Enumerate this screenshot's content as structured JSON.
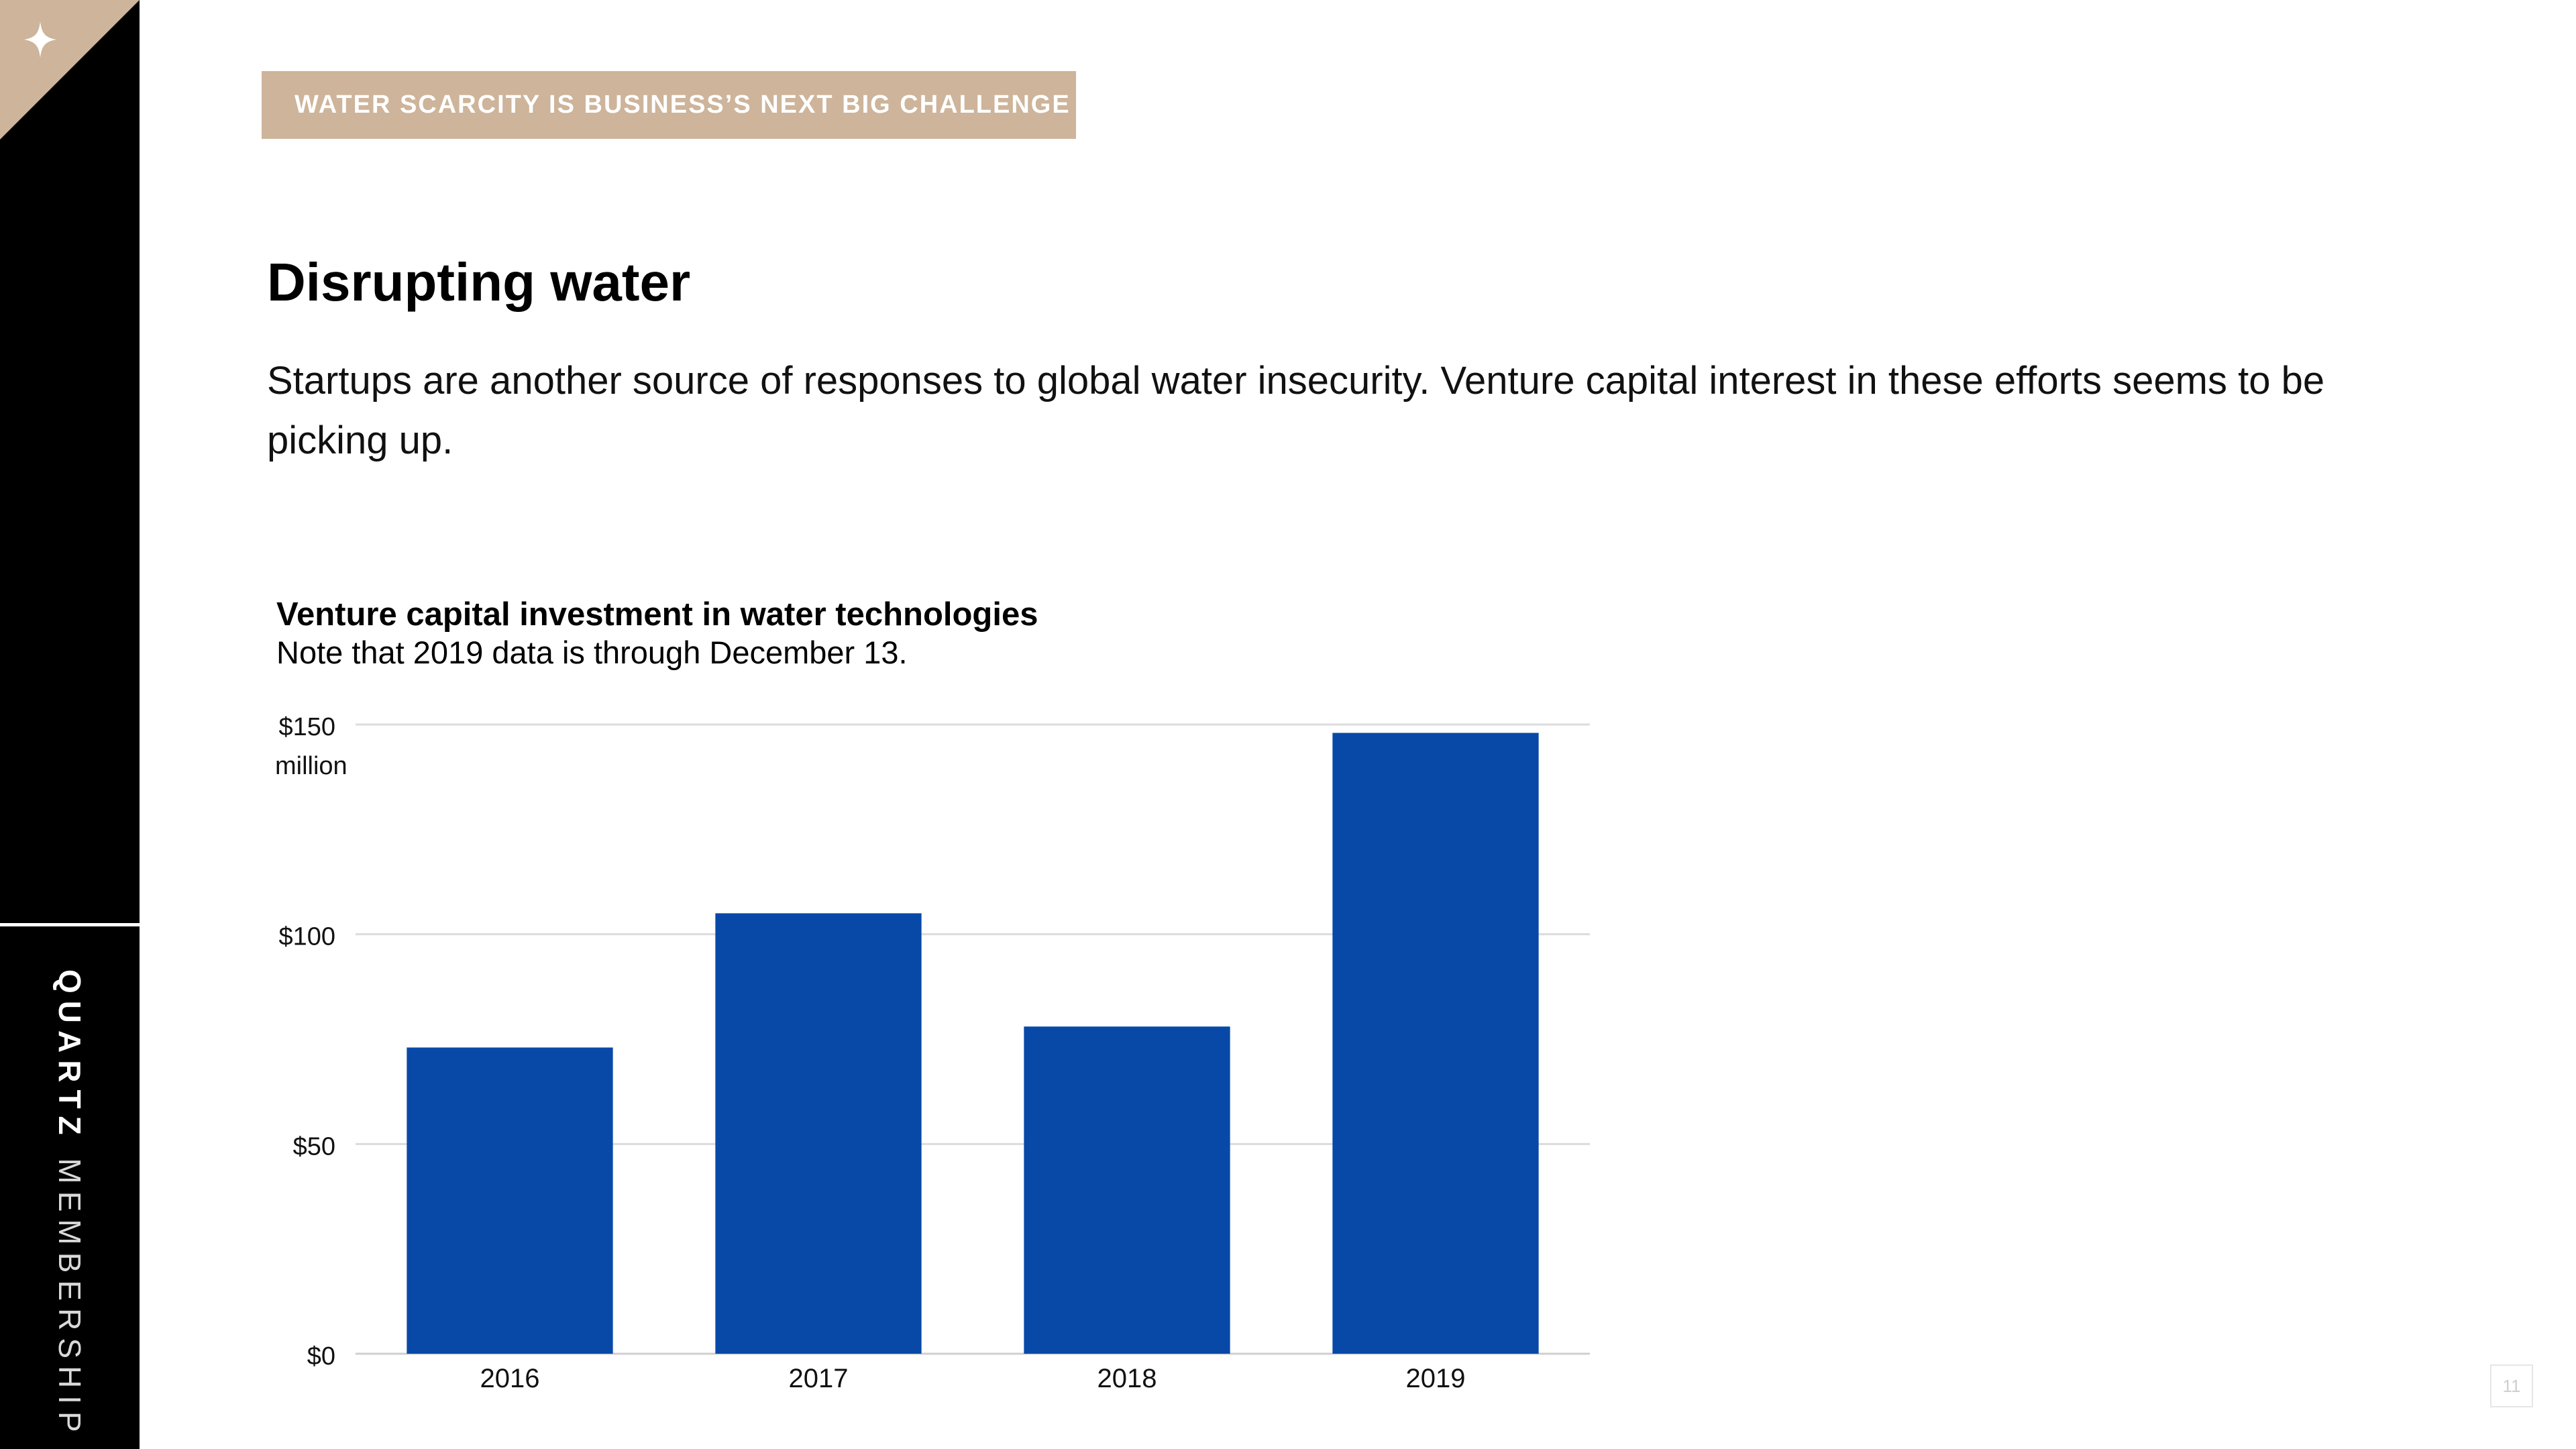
{
  "sidebar": {
    "brand_strong": "QUARTZ",
    "brand_light": "MEMBERSHIP",
    "corner_icon": "sparkle-icon",
    "corner_color": "#cdb49a"
  },
  "header": {
    "section_tag": "WATER SCARCITY IS BUSINESS’S NEXT BIG CHALLENGE",
    "tag_color": "#cdb49a"
  },
  "main": {
    "title": "Disrupting water",
    "body": "Startups are another source of responses to global water insecurity. Venture capital interest in these efforts seems to be picking up."
  },
  "chart_data": {
    "type": "bar",
    "title": "Venture capital investment in water technologies",
    "subtitle": "Note that 2019 data is through December 13.",
    "categories": [
      "2016",
      "2017",
      "2018",
      "2019"
    ],
    "values": [
      73,
      105,
      78,
      148
    ],
    "ylim": [
      0,
      150
    ],
    "yticks": [
      0,
      50,
      100,
      150
    ],
    "ytick_labels": [
      "$0",
      "$50",
      "$100",
      "$150"
    ],
    "yunit_label": "million",
    "xlabel": "",
    "ylabel": "",
    "grid": true,
    "bar_color": "#0849a8"
  },
  "footer": {
    "page_number": "11"
  }
}
